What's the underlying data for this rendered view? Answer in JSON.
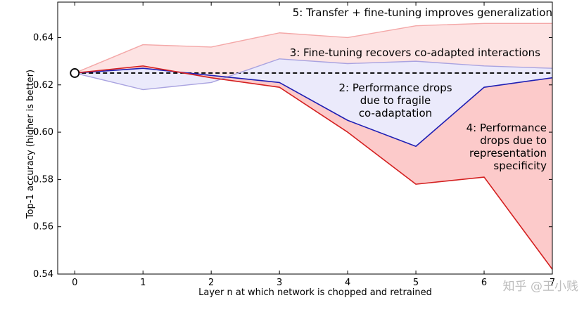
{
  "chart_data": {
    "type": "line",
    "xlabel": "Layer n at which network is chopped and retrained",
    "ylabel": "Top-1 accuracy (higher is better)",
    "xlim": [
      -0.25,
      7
    ],
    "ylim": [
      0.54,
      0.655
    ],
    "x": [
      0,
      1,
      2,
      3,
      4,
      5,
      6,
      7
    ],
    "x_ticks": [
      "0",
      "1",
      "2",
      "3",
      "4",
      "5",
      "6",
      "7"
    ],
    "y_ticks": [
      "0.54",
      "0.56",
      "0.58",
      "0.60",
      "0.62",
      "0.64"
    ],
    "y_tick_values": [
      0.54,
      0.56,
      0.58,
      0.6,
      0.62,
      0.64
    ],
    "baseline": 0.625,
    "series": [
      {
        "values": [
          0.625,
          0.637,
          0.636,
          0.642,
          0.64,
          0.645,
          0.646,
          0.646
        ],
        "color": "#f4a8a8"
      },
      {
        "values": [
          0.625,
          0.618,
          0.621,
          0.631,
          0.629,
          0.63,
          0.628,
          0.627
        ],
        "color": "#a9a3e0"
      },
      {
        "values": [
          0.625,
          0.627,
          0.624,
          0.621,
          0.605,
          0.594,
          0.619,
          0.623
        ],
        "color": "#1f1fb4"
      },
      {
        "values": [
          0.625,
          0.628,
          0.623,
          0.619,
          0.6,
          0.578,
          0.581,
          0.542
        ],
        "color": "#d42020"
      }
    ],
    "fills": [
      {
        "between": [
          0,
          1
        ],
        "color": "#fde3e3"
      },
      {
        "between": [
          1,
          2
        ],
        "color": "#ebeafb"
      },
      {
        "between": [
          2,
          3
        ],
        "color": "#fccaca"
      }
    ],
    "annotations": [
      {
        "text": "5: Transfer + fine-tuning improves generalization"
      },
      {
        "text": "3: Fine-tuning recovers co-adapted interactions"
      },
      {
        "text": "2: Performance drops"
      },
      {
        "text": "due to fragile"
      },
      {
        "text": "co-adaptation"
      },
      {
        "text": "4: Performance"
      },
      {
        "text": "drops due to"
      },
      {
        "text": "representation"
      },
      {
        "text": "specificity"
      }
    ]
  },
  "watermark": "知乎 @王小贱"
}
